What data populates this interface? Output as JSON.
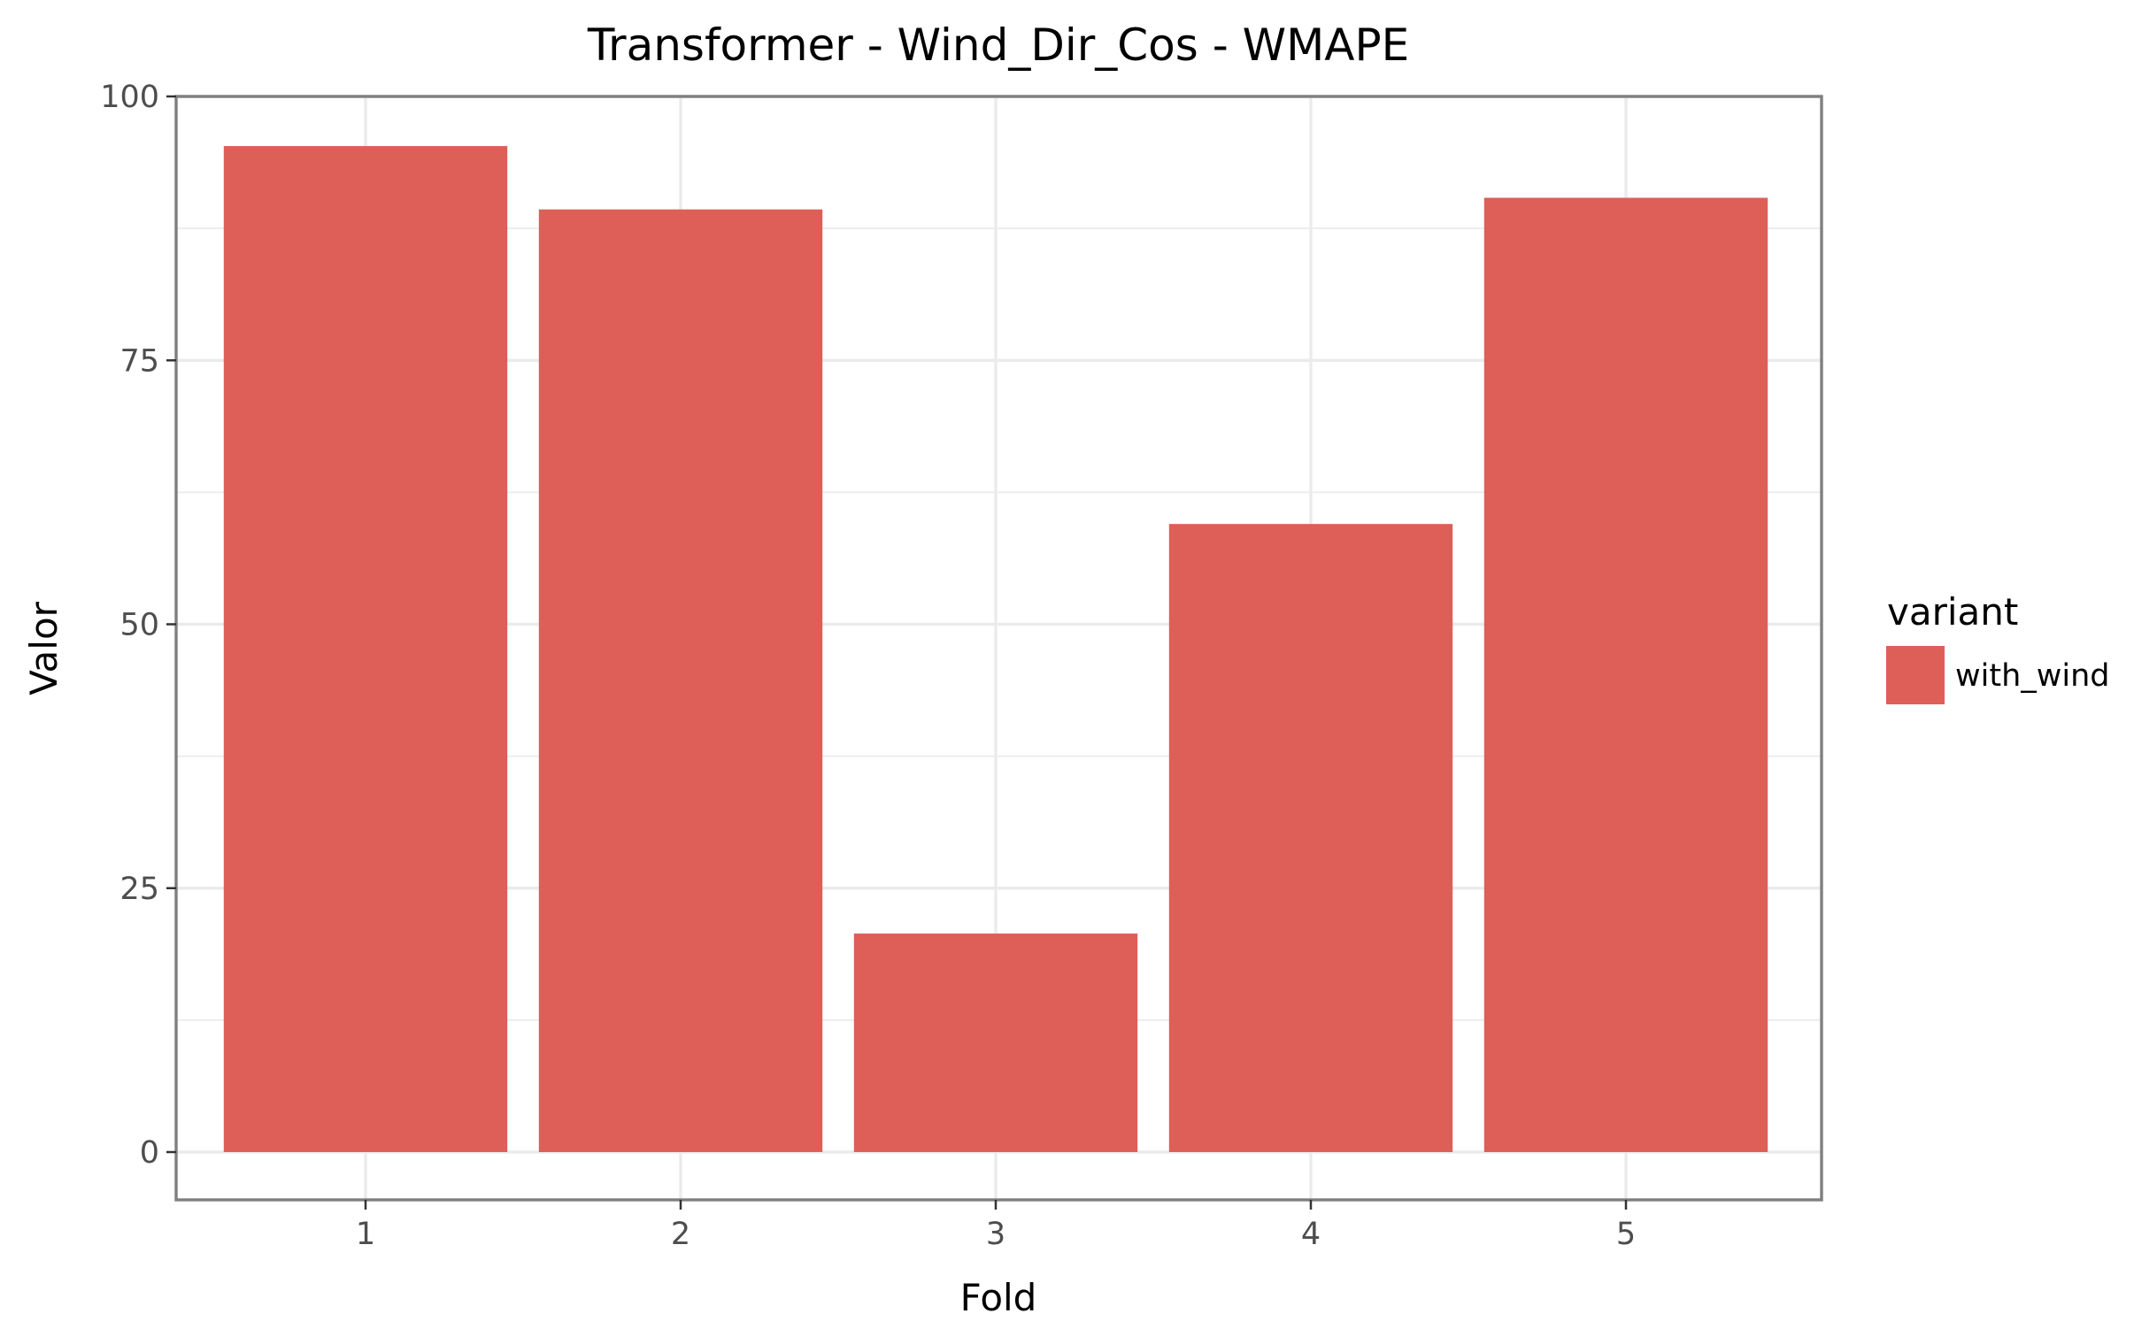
{
  "chart_data": {
    "type": "bar",
    "title": "Transformer - Wind_Dir_Cos - WMAPE",
    "xlabel": "Fold",
    "ylabel": "Valor",
    "categories": [
      "1",
      "2",
      "3",
      "4",
      "5"
    ],
    "series": [
      {
        "name": "with_wind",
        "color": "#dd5f58",
        "values": [
          95.3,
          89.3,
          20.7,
          59.5,
          90.4
        ]
      }
    ],
    "ylim": [
      -4.8,
      100
    ],
    "yticks": [
      0,
      25,
      50,
      75,
      100
    ],
    "grid": true,
    "legend": {
      "title": "variant",
      "position": "right",
      "entries": [
        "with_wind"
      ]
    }
  }
}
